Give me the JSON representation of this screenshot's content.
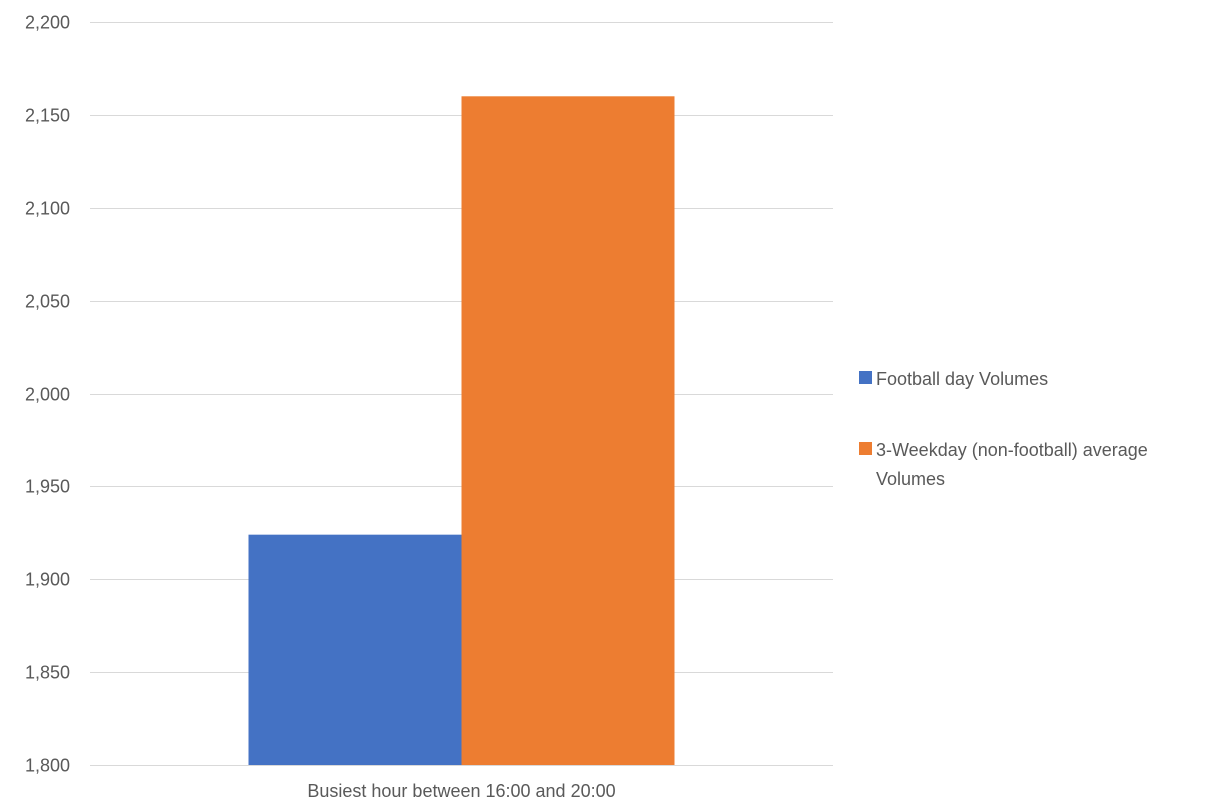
{
  "chart_data": {
    "type": "bar",
    "title": "",
    "categories": [
      "Busiest hour between 16:00 and 20:00"
    ],
    "series": [
      {
        "name": "Football day Volumes",
        "values": [
          1924
        ],
        "color": "#4472C4"
      },
      {
        "name": "3-Weekday (non-football) average Volumes",
        "values": [
          2160
        ],
        "color": "#ED7D31"
      }
    ],
    "ylim": [
      1800,
      2200
    ],
    "yticks": [
      1800,
      1850,
      1900,
      1950,
      2000,
      2050,
      2100,
      2150,
      2200
    ],
    "ytick_labels": [
      "1,800",
      "1,850",
      "1,900",
      "1,950",
      "2,000",
      "2,050",
      "2,100",
      "2,150",
      "2,200"
    ],
    "grid": true,
    "legend_position": "right",
    "legend_lines": [
      [
        "Football day Volumes"
      ],
      [
        "3-Weekday (non-football) average",
        "Volumes"
      ]
    ]
  }
}
